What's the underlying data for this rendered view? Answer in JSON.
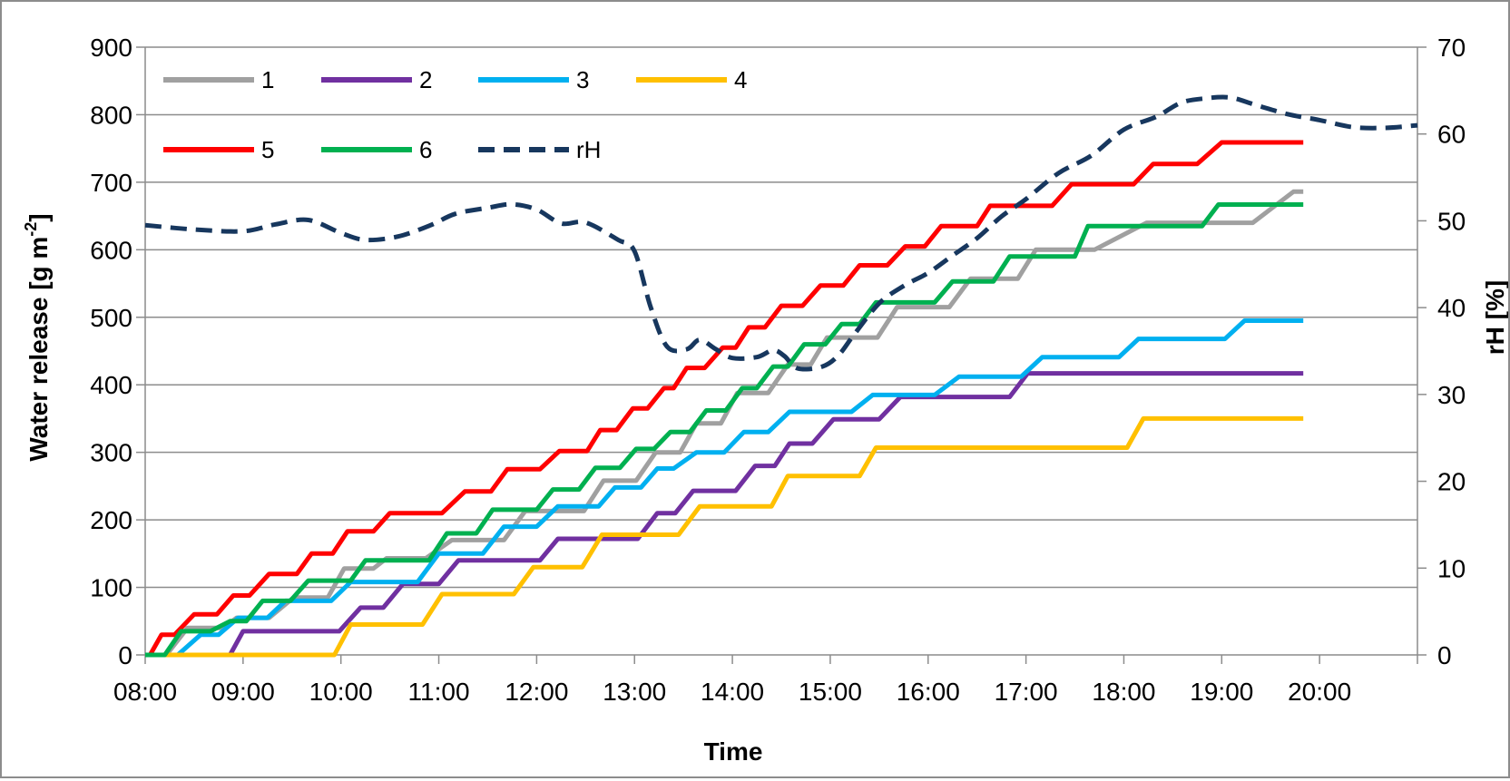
{
  "chart_data": {
    "type": "line",
    "title": "",
    "xlabel": "Time",
    "ylabel": "Water release [g m-2]",
    "ylabel_parts": {
      "base": "Water release [g m",
      "sup": "-2",
      "end": "]"
    },
    "y2label": "rH [%]",
    "xlim": [
      480,
      1260
    ],
    "ylim": [
      0,
      900
    ],
    "y2lim": [
      0,
      70
    ],
    "x_ticks": [
      {
        "t": 480,
        "label": "08:00"
      },
      {
        "t": 540,
        "label": "09:00"
      },
      {
        "t": 600,
        "label": "10:00"
      },
      {
        "t": 660,
        "label": "11:00"
      },
      {
        "t": 720,
        "label": "12:00"
      },
      {
        "t": 780,
        "label": "13:00"
      },
      {
        "t": 840,
        "label": "14:00"
      },
      {
        "t": 900,
        "label": "15:00"
      },
      {
        "t": 960,
        "label": "16:00"
      },
      {
        "t": 1020,
        "label": "17:00"
      },
      {
        "t": 1080,
        "label": "18:00"
      },
      {
        "t": 1140,
        "label": "19:00"
      },
      {
        "t": 1200,
        "label": "20:00"
      }
    ],
    "y_ticks": [
      "0",
      "100",
      "200",
      "300",
      "400",
      "500",
      "600",
      "700",
      "800",
      "900"
    ],
    "y2_ticks": [
      "0",
      "10",
      "20",
      "30",
      "40",
      "50",
      "60",
      "70"
    ],
    "grid": "horizontal",
    "legend_position": "top-left",
    "colors": {
      "frame": "#8c8c8c",
      "grid": "#8c8c8c",
      "axis": "#8c8c8c"
    },
    "series": [
      {
        "name": "1",
        "color": "#a0a0a0",
        "axis": "left",
        "dash": false,
        "step": true,
        "points": [
          [
            480,
            0
          ],
          [
            493,
            0
          ],
          [
            506,
            40
          ],
          [
            528,
            40
          ],
          [
            536,
            55
          ],
          [
            556,
            55
          ],
          [
            571,
            85
          ],
          [
            592,
            85
          ],
          [
            602,
            128
          ],
          [
            620,
            128
          ],
          [
            628,
            143
          ],
          [
            652,
            143
          ],
          [
            668,
            170
          ],
          [
            700,
            170
          ],
          [
            713,
            213
          ],
          [
            749,
            213
          ],
          [
            761,
            258
          ],
          [
            781,
            258
          ],
          [
            793,
            300
          ],
          [
            808,
            300
          ],
          [
            818,
            343
          ],
          [
            833,
            343
          ],
          [
            843,
            388
          ],
          [
            862,
            388
          ],
          [
            874,
            430
          ],
          [
            888,
            430
          ],
          [
            898,
            470
          ],
          [
            929,
            470
          ],
          [
            941,
            515
          ],
          [
            973,
            515
          ],
          [
            986,
            557
          ],
          [
            1015,
            557
          ],
          [
            1026,
            600
          ],
          [
            1062,
            600
          ],
          [
            1094,
            640
          ],
          [
            1159,
            640
          ],
          [
            1184,
            686
          ],
          [
            1190,
            686
          ]
        ]
      },
      {
        "name": "2",
        "color": "#7030a0",
        "axis": "left",
        "dash": false,
        "step": true,
        "points": [
          [
            480,
            0
          ],
          [
            532,
            0
          ],
          [
            540,
            35
          ],
          [
            599,
            35
          ],
          [
            612,
            70
          ],
          [
            626,
            70
          ],
          [
            638,
            105
          ],
          [
            660,
            105
          ],
          [
            672,
            140
          ],
          [
            722,
            140
          ],
          [
            733,
            172
          ],
          [
            782,
            172
          ],
          [
            794,
            210
          ],
          [
            805,
            210
          ],
          [
            816,
            243
          ],
          [
            842,
            243
          ],
          [
            854,
            280
          ],
          [
            866,
            280
          ],
          [
            875,
            313
          ],
          [
            889,
            313
          ],
          [
            902,
            349
          ],
          [
            930,
            349
          ],
          [
            943,
            382
          ],
          [
            1010,
            382
          ],
          [
            1021,
            417
          ],
          [
            1190,
            417
          ]
        ]
      },
      {
        "name": "3",
        "color": "#00b0f0",
        "axis": "left",
        "dash": false,
        "step": true,
        "points": [
          [
            480,
            0
          ],
          [
            500,
            0
          ],
          [
            514,
            30
          ],
          [
            525,
            30
          ],
          [
            537,
            55
          ],
          [
            555,
            55
          ],
          [
            566,
            80
          ],
          [
            594,
            80
          ],
          [
            606,
            108
          ],
          [
            647,
            108
          ],
          [
            660,
            150
          ],
          [
            687,
            150
          ],
          [
            700,
            190
          ],
          [
            720,
            190
          ],
          [
            733,
            220
          ],
          [
            758,
            220
          ],
          [
            768,
            248
          ],
          [
            784,
            248
          ],
          [
            794,
            276
          ],
          [
            804,
            276
          ],
          [
            818,
            300
          ],
          [
            835,
            300
          ],
          [
            847,
            330
          ],
          [
            862,
            330
          ],
          [
            875,
            360
          ],
          [
            913,
            360
          ],
          [
            926,
            385
          ],
          [
            964,
            385
          ],
          [
            979,
            412
          ],
          [
            1017,
            412
          ],
          [
            1030,
            441
          ],
          [
            1077,
            441
          ],
          [
            1089,
            468
          ],
          [
            1142,
            468
          ],
          [
            1154,
            495
          ],
          [
            1190,
            495
          ]
        ]
      },
      {
        "name": "4",
        "color": "#ffc000",
        "axis": "left",
        "dash": false,
        "step": true,
        "points": [
          [
            480,
            0
          ],
          [
            596,
            0
          ],
          [
            606,
            45
          ],
          [
            650,
            45
          ],
          [
            662,
            90
          ],
          [
            706,
            90
          ],
          [
            718,
            130
          ],
          [
            748,
            130
          ],
          [
            760,
            178
          ],
          [
            807,
            178
          ],
          [
            820,
            220
          ],
          [
            864,
            220
          ],
          [
            874,
            265
          ],
          [
            918,
            265
          ],
          [
            928,
            307
          ],
          [
            1082,
            307
          ],
          [
            1092,
            350
          ],
          [
            1190,
            350
          ]
        ]
      },
      {
        "name": "5",
        "color": "#ff0000",
        "axis": "left",
        "dash": false,
        "step": true,
        "points": [
          [
            480,
            0
          ],
          [
            483,
            0
          ],
          [
            490,
            30
          ],
          [
            498,
            30
          ],
          [
            510,
            60
          ],
          [
            524,
            60
          ],
          [
            534,
            88
          ],
          [
            544,
            88
          ],
          [
            556,
            120
          ],
          [
            573,
            120
          ],
          [
            582,
            150
          ],
          [
            595,
            150
          ],
          [
            604,
            183
          ],
          [
            620,
            183
          ],
          [
            630,
            210
          ],
          [
            662,
            210
          ],
          [
            676,
            242
          ],
          [
            692,
            242
          ],
          [
            702,
            275
          ],
          [
            722,
            275
          ],
          [
            734,
            302
          ],
          [
            751,
            302
          ],
          [
            759,
            333
          ],
          [
            769,
            333
          ],
          [
            779,
            365
          ],
          [
            788,
            365
          ],
          [
            798,
            395
          ],
          [
            804,
            395
          ],
          [
            812,
            425
          ],
          [
            823,
            425
          ],
          [
            834,
            455
          ],
          [
            842,
            455
          ],
          [
            850,
            485
          ],
          [
            860,
            485
          ],
          [
            870,
            517
          ],
          [
            883,
            517
          ],
          [
            894,
            547
          ],
          [
            908,
            547
          ],
          [
            918,
            577
          ],
          [
            935,
            577
          ],
          [
            946,
            605
          ],
          [
            958,
            605
          ],
          [
            968,
            635
          ],
          [
            990,
            635
          ],
          [
            998,
            665
          ],
          [
            1036,
            665
          ],
          [
            1048,
            697
          ],
          [
            1086,
            697
          ],
          [
            1098,
            727
          ],
          [
            1125,
            727
          ],
          [
            1140,
            759
          ],
          [
            1190,
            759
          ]
        ]
      },
      {
        "name": "6",
        "color": "#00b050",
        "axis": "left",
        "dash": false,
        "step": true,
        "points": [
          [
            480,
            0
          ],
          [
            492,
            0
          ],
          [
            502,
            35
          ],
          [
            520,
            35
          ],
          [
            532,
            50
          ],
          [
            542,
            50
          ],
          [
            552,
            80
          ],
          [
            569,
            80
          ],
          [
            580,
            110
          ],
          [
            606,
            110
          ],
          [
            615,
            140
          ],
          [
            654,
            140
          ],
          [
            665,
            180
          ],
          [
            683,
            180
          ],
          [
            693,
            215
          ],
          [
            720,
            215
          ],
          [
            730,
            245
          ],
          [
            746,
            245
          ],
          [
            756,
            277
          ],
          [
            771,
            277
          ],
          [
            781,
            305
          ],
          [
            792,
            305
          ],
          [
            802,
            330
          ],
          [
            814,
            330
          ],
          [
            824,
            362
          ],
          [
            836,
            362
          ],
          [
            846,
            395
          ],
          [
            855,
            395
          ],
          [
            865,
            427
          ],
          [
            874,
            427
          ],
          [
            884,
            460
          ],
          [
            897,
            460
          ],
          [
            907,
            490
          ],
          [
            918,
            490
          ],
          [
            928,
            522
          ],
          [
            964,
            522
          ],
          [
            975,
            553
          ],
          [
            1000,
            553
          ],
          [
            1010,
            590
          ],
          [
            1050,
            590
          ],
          [
            1058,
            635
          ],
          [
            1128,
            635
          ],
          [
            1138,
            667
          ],
          [
            1190,
            667
          ]
        ]
      },
      {
        "name": "rH",
        "color": "#17375e",
        "axis": "right",
        "dash": true,
        "step": false,
        "points": [
          [
            480,
            49.5
          ],
          [
            510,
            49.0
          ],
          [
            540,
            48.8
          ],
          [
            560,
            49.6
          ],
          [
            580,
            50.1
          ],
          [
            600,
            48.6
          ],
          [
            615,
            47.8
          ],
          [
            635,
            48.2
          ],
          [
            655,
            49.5
          ],
          [
            670,
            50.8
          ],
          [
            690,
            51.5
          ],
          [
            705,
            51.9
          ],
          [
            720,
            51.3
          ],
          [
            735,
            49.7
          ],
          [
            750,
            49.8
          ],
          [
            770,
            47.8
          ],
          [
            780,
            46.5
          ],
          [
            790,
            40.0
          ],
          [
            800,
            35.5
          ],
          [
            812,
            35.2
          ],
          [
            820,
            36.3
          ],
          [
            830,
            35.2
          ],
          [
            840,
            34.2
          ],
          [
            855,
            34.3
          ],
          [
            865,
            35.1
          ],
          [
            872,
            34.4
          ],
          [
            880,
            33.0
          ],
          [
            895,
            33.2
          ],
          [
            905,
            34.5
          ],
          [
            915,
            37.0
          ],
          [
            930,
            40.5
          ],
          [
            945,
            42.5
          ],
          [
            960,
            44.0
          ],
          [
            975,
            46.0
          ],
          [
            990,
            48.0
          ],
          [
            1005,
            50.5
          ],
          [
            1020,
            52.5
          ],
          [
            1040,
            55.5
          ],
          [
            1060,
            57.5
          ],
          [
            1080,
            60.5
          ],
          [
            1100,
            62.0
          ],
          [
            1115,
            63.6
          ],
          [
            1130,
            64.1
          ],
          [
            1145,
            64.2
          ],
          [
            1160,
            63.4
          ],
          [
            1180,
            62.3
          ],
          [
            1200,
            61.6
          ],
          [
            1220,
            60.8
          ],
          [
            1240,
            60.7
          ],
          [
            1260,
            61.0
          ]
        ]
      }
    ]
  }
}
